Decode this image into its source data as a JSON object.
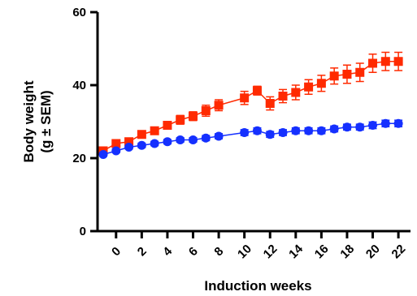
{
  "chart_data": {
    "type": "line",
    "xlabel": "Induction weeks",
    "ylabel_line1": "Body weight",
    "ylabel_line2": "(g ± SEM)",
    "xlim": [
      -1,
      22.5
    ],
    "ylim": [
      0,
      60
    ],
    "x_ticks": [
      0,
      2,
      4,
      6,
      8,
      10,
      12,
      14,
      16,
      18,
      20,
      22
    ],
    "y_ticks": [
      0,
      20,
      40,
      60
    ],
    "series": [
      {
        "color": "#ff2a00",
        "marker": "square",
        "x": [
          -1,
          0,
          1,
          2,
          3,
          4,
          5,
          6,
          7,
          8,
          10,
          11,
          12,
          13,
          14,
          15,
          16,
          17,
          18,
          19,
          20,
          21,
          22
        ],
        "y": [
          22,
          24,
          24.5,
          26.5,
          27.5,
          29,
          30.5,
          31.5,
          33,
          34.5,
          36.5,
          38.5,
          35,
          37,
          38,
          39.5,
          40.5,
          42.5,
          43,
          43.5,
          46,
          46.5,
          46.5
        ],
        "err": [
          0.8,
          0.8,
          1.0,
          1.0,
          1.0,
          1.0,
          1.2,
          1.2,
          1.5,
          1.5,
          1.8,
          1.2,
          1.8,
          1.8,
          2.0,
          2.0,
          2.2,
          2.2,
          2.5,
          2.5,
          2.5,
          2.5,
          2.5
        ]
      },
      {
        "color": "#1530ff",
        "marker": "circle",
        "x": [
          -1,
          0,
          1,
          2,
          3,
          4,
          5,
          6,
          7,
          8,
          10,
          11,
          12,
          13,
          14,
          15,
          16,
          17,
          18,
          19,
          20,
          21,
          22
        ],
        "y": [
          21,
          22,
          23,
          23.5,
          24,
          24.5,
          25,
          25,
          25.5,
          26,
          27,
          27.5,
          26.5,
          27,
          27.5,
          27.5,
          27.5,
          28,
          28.5,
          28.5,
          29,
          29.5,
          29.5
        ],
        "err": [
          0.5,
          0.5,
          0.5,
          0.6,
          0.6,
          0.6,
          0.6,
          0.6,
          0.7,
          0.7,
          0.8,
          0.8,
          0.8,
          0.8,
          0.8,
          0.8,
          0.8,
          0.8,
          0.8,
          0.8,
          0.9,
          0.9,
          0.9
        ]
      }
    ]
  }
}
